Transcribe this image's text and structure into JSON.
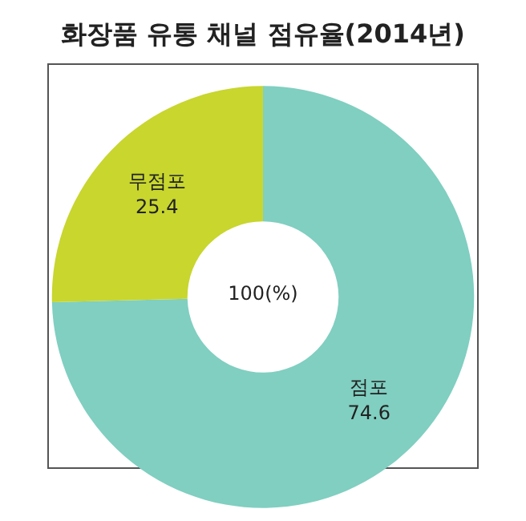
{
  "chart_data": {
    "type": "donut",
    "title": "화장품 유통 채널 점유율(2014년)",
    "categories": [
      "점포",
      "무점포"
    ],
    "values": [
      74.6,
      25.4
    ],
    "colors": [
      "#80cfc1",
      "#c8d62e"
    ],
    "data_labels": true,
    "annotations": [
      "100(%)"
    ]
  }
}
